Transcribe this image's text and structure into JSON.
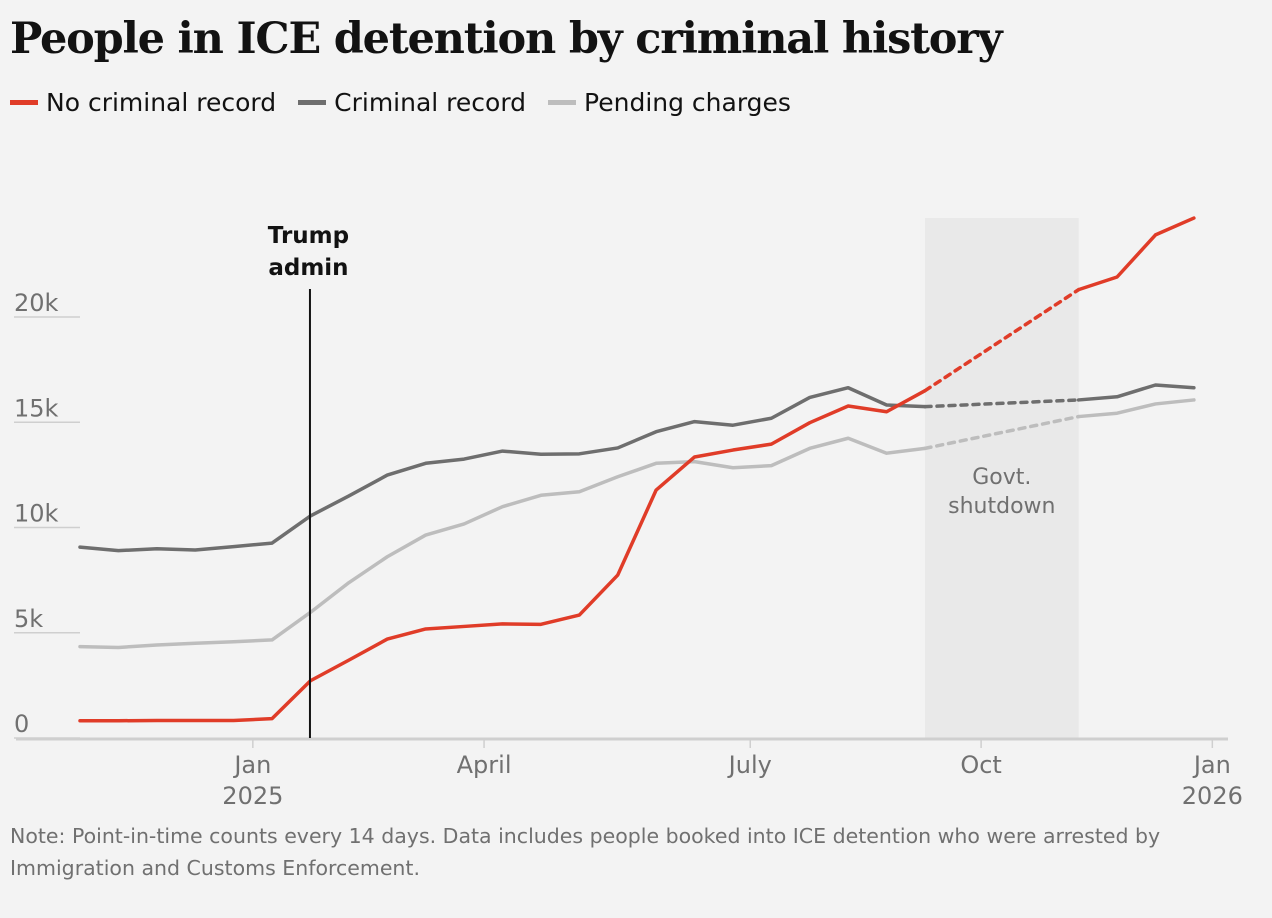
{
  "title": "People in ICE detention by criminal history",
  "legend": [
    {
      "label": "No criminal record",
      "color": "#e03c28"
    },
    {
      "label": "Criminal record",
      "color": "#6e6e6e"
    },
    {
      "label": "Pending charges",
      "color": "#bdbdbd"
    }
  ],
  "note": "Note: Point-in-time counts every 14 days. Data includes people booked into ICE detention who were arrested by Immigration and Customs Enforcement.",
  "chart_data": {
    "type": "line",
    "title": "People in ICE detention by criminal history",
    "xlabel": "",
    "ylabel": "",
    "x_unit": "14-day period index",
    "x": [
      0,
      1,
      2,
      3,
      4,
      5,
      6,
      7,
      8,
      9,
      10,
      11,
      12,
      13,
      14,
      15,
      16,
      17,
      18,
      19,
      20,
      21,
      22,
      26,
      27,
      28,
      29
    ],
    "dashed_between": [
      22,
      26
    ],
    "ylim": [
      0,
      25000
    ],
    "xlim": [
      0,
      29.6
    ],
    "yticks": [
      {
        "value": 0,
        "label": "0"
      },
      {
        "value": 5000,
        "label": "5k"
      },
      {
        "value": 10000,
        "label": "10k"
      },
      {
        "value": 15000,
        "label": "15k"
      },
      {
        "value": 20000,
        "label": "20k"
      }
    ],
    "xticks": [
      {
        "pos": 4.5,
        "label": "Jan",
        "sub": "2025"
      },
      {
        "pos": 10.52,
        "label": "April",
        "sub": ""
      },
      {
        "pos": 17.45,
        "label": "July",
        "sub": ""
      },
      {
        "pos": 23.46,
        "label": "Oct",
        "sub": ""
      },
      {
        "pos": 29.48,
        "label": "Jan",
        "sub": "2026"
      }
    ],
    "series": [
      {
        "name": "No criminal record",
        "color": "#e03c28",
        "values": [
          820,
          820,
          830,
          830,
          830,
          920,
          2720,
          3700,
          4700,
          5180,
          5300,
          5420,
          5400,
          5840,
          7740,
          11780,
          13350,
          13680,
          13960,
          14980,
          15770,
          15500,
          16500,
          21300,
          21900,
          23900,
          24700
        ]
      },
      {
        "name": "Criminal record",
        "color": "#6e6e6e",
        "values": [
          9070,
          8900,
          8990,
          8930,
          9090,
          9260,
          10550,
          11500,
          12490,
          13050,
          13250,
          13630,
          13480,
          13500,
          13780,
          14550,
          15030,
          14860,
          15190,
          16180,
          16640,
          15820,
          15740,
          16060,
          16210,
          16770,
          16640
        ]
      },
      {
        "name": "Pending charges",
        "color": "#bdbdbd",
        "values": [
          4340,
          4300,
          4420,
          4500,
          4570,
          4660,
          5970,
          7380,
          8610,
          9640,
          10170,
          10990,
          11530,
          11700,
          12410,
          13050,
          13130,
          12840,
          12940,
          13760,
          14240,
          13530,
          13760,
          15270,
          15430,
          15870,
          16060
        ]
      }
    ],
    "annotations": [
      {
        "type": "vline",
        "pos": 6,
        "label_lines": [
          "Trump",
          "admin"
        ]
      },
      {
        "type": "band",
        "from": 22,
        "to": 26,
        "label_lines": [
          "Govt.",
          "shutdown"
        ]
      }
    ],
    "grid": true,
    "legend_position": "top-left"
  }
}
